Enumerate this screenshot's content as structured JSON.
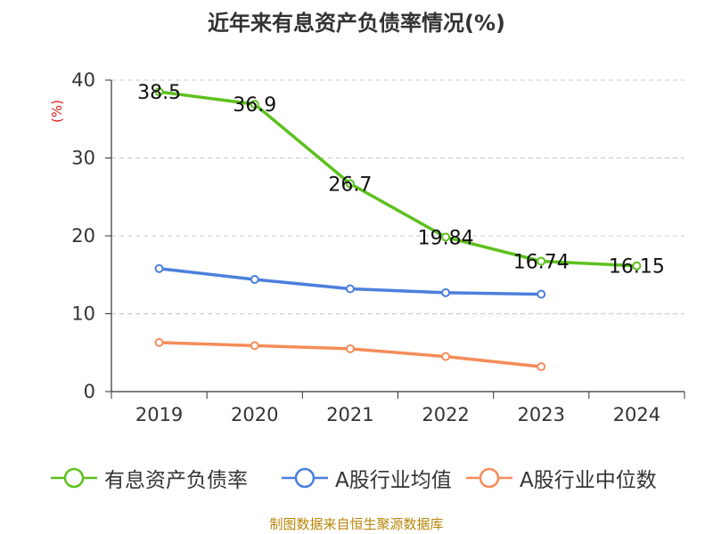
{
  "title": "近年来有息资产负债率情况(%)",
  "footer": "制图数据来自恒生聚源数据库",
  "chart_data": {
    "type": "line",
    "title": "近年来有息资产负债率情况(%)",
    "ylabel": "(%)",
    "xlabel": "",
    "ylim": [
      0,
      40
    ],
    "yticks": [
      0,
      10,
      20,
      30,
      40
    ],
    "grid": true,
    "legend_position": "bottom",
    "categories": [
      "2019",
      "2020",
      "2021",
      "2022",
      "2023",
      "2024"
    ],
    "series": [
      {
        "name": "有息资产负债率",
        "color": "#5ec01e",
        "values": [
          38.5,
          36.9,
          26.7,
          19.84,
          16.74,
          16.15
        ],
        "labels": [
          "38.5",
          "36.9",
          "26.7",
          "19.84",
          "16.74",
          "16.15"
        ]
      },
      {
        "name": "A股行业均值",
        "color": "#4b7fdc",
        "values": [
          15.8,
          14.4,
          13.2,
          12.7,
          12.5,
          null
        ]
      },
      {
        "name": "A股行业中位数",
        "color": "#f58c5a",
        "values": [
          6.3,
          5.9,
          5.5,
          4.5,
          3.2,
          null
        ]
      }
    ]
  }
}
